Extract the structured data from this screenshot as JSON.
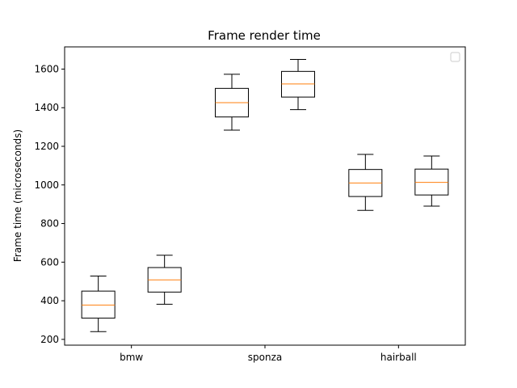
{
  "chart_data": {
    "type": "box",
    "title": "Frame render time",
    "xlabel": "",
    "ylabel": "Frame time (microseconds)",
    "categories": [
      "bmw",
      "sponza",
      "hairball"
    ],
    "ylim": [
      170,
      1715
    ],
    "yticks": [
      200,
      400,
      600,
      800,
      1000,
      1200,
      1400,
      1600
    ],
    "grid": false,
    "legend": {
      "placement": "top-right",
      "entries": []
    },
    "boxes": [
      {
        "category": "bmw",
        "whisker_low": 240,
        "q1": 310,
        "median": 378,
        "q3": 450,
        "whisker_high": 528
      },
      {
        "category": "bmw",
        "whisker_low": 382,
        "q1": 445,
        "median": 508,
        "q3": 572,
        "whisker_high": 636
      },
      {
        "category": "sponza",
        "whisker_low": 1284,
        "q1": 1352,
        "median": 1426,
        "q3": 1500,
        "whisker_high": 1573
      },
      {
        "category": "sponza",
        "whisker_low": 1390,
        "q1": 1455,
        "median": 1523,
        "q3": 1588,
        "whisker_high": 1650
      },
      {
        "category": "hairball",
        "whisker_low": 868,
        "q1": 940,
        "median": 1010,
        "q3": 1080,
        "whisker_high": 1158
      },
      {
        "category": "hairball",
        "whisker_low": 890,
        "q1": 948,
        "median": 1013,
        "q3": 1082,
        "whisker_high": 1150
      }
    ],
    "colors": {
      "box": "#000000",
      "median": "#ff7f0e"
    }
  }
}
